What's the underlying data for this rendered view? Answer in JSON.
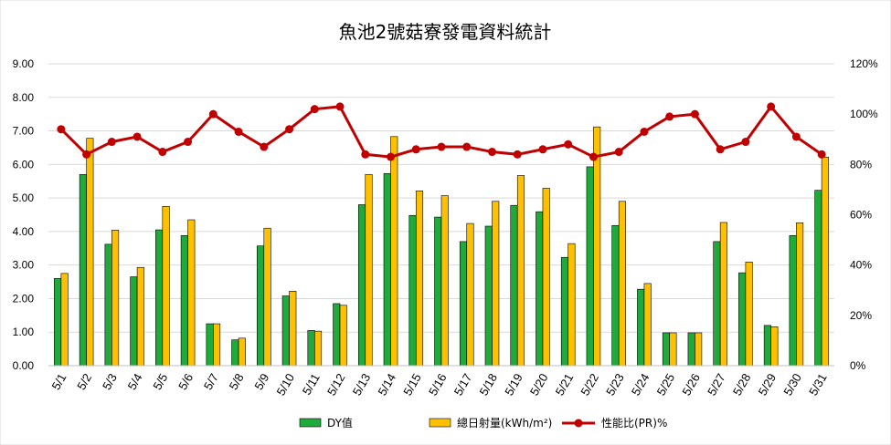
{
  "chart_data": {
    "type": "bar+line",
    "title": "魚池2號菇寮發電資料統計",
    "categories": [
      "5/1",
      "5/2",
      "5/3",
      "5/4",
      "5/5",
      "5/6",
      "5/7",
      "5/8",
      "5/9",
      "5/10",
      "5/11",
      "5/12",
      "5/13",
      "5/14",
      "5/15",
      "5/16",
      "5/17",
      "5/18",
      "5/19",
      "5/20",
      "5/21",
      "5/22",
      "5/23",
      "5/24",
      "5/25",
      "5/26",
      "5/27",
      "5/28",
      "5/29",
      "5/30",
      "5/31"
    ],
    "series": [
      {
        "name": "DY值",
        "type": "bar",
        "axis": "left",
        "color": "#1faa3c",
        "values": [
          2.6,
          5.7,
          3.62,
          2.65,
          4.05,
          3.88,
          1.25,
          0.77,
          3.57,
          2.08,
          1.05,
          1.85,
          4.8,
          5.73,
          4.48,
          4.43,
          3.7,
          4.16,
          4.78,
          4.59,
          3.23,
          5.93,
          4.18,
          2.28,
          0.98,
          0.98,
          3.7,
          2.77,
          1.2,
          3.88,
          5.23
        ]
      },
      {
        "name": "總日射量(kWh/m²)",
        "type": "bar",
        "axis": "left",
        "color": "#ffc000",
        "values": [
          2.75,
          6.78,
          4.04,
          2.93,
          4.75,
          4.35,
          1.25,
          0.82,
          4.1,
          2.22,
          1.03,
          1.8,
          5.7,
          6.83,
          5.21,
          5.07,
          4.24,
          4.9,
          5.67,
          5.29,
          3.64,
          7.12,
          4.9,
          2.45,
          0.98,
          0.98,
          4.27,
          3.09,
          1.16,
          4.26,
          6.22
        ]
      },
      {
        "name": "性能比(PR)%",
        "type": "line",
        "axis": "right",
        "color": "#c00000",
        "values": [
          94,
          84,
          89,
          91,
          85,
          89,
          100,
          93,
          87,
          94,
          102,
          103,
          84,
          83,
          86,
          87,
          87,
          85,
          84,
          86,
          88,
          83,
          85,
          93,
          99,
          100,
          86,
          89,
          103,
          91,
          84
        ]
      }
    ],
    "yleft": {
      "min": 0,
      "max": 9,
      "step": 1,
      "ticks": [
        "0.00",
        "1.00",
        "2.00",
        "3.00",
        "4.00",
        "5.00",
        "6.00",
        "7.00",
        "8.00",
        "9.00"
      ]
    },
    "yright": {
      "min": 0,
      "max": 120,
      "step": 20,
      "ticks": [
        "0%",
        "20%",
        "40%",
        "60%",
        "80%",
        "100%",
        "120%"
      ]
    },
    "grid": true,
    "legend_position": "bottom",
    "colors": {
      "grid": "#d9d9d9",
      "axis": "#bfbfbf",
      "bar_outline": "#000000"
    }
  }
}
